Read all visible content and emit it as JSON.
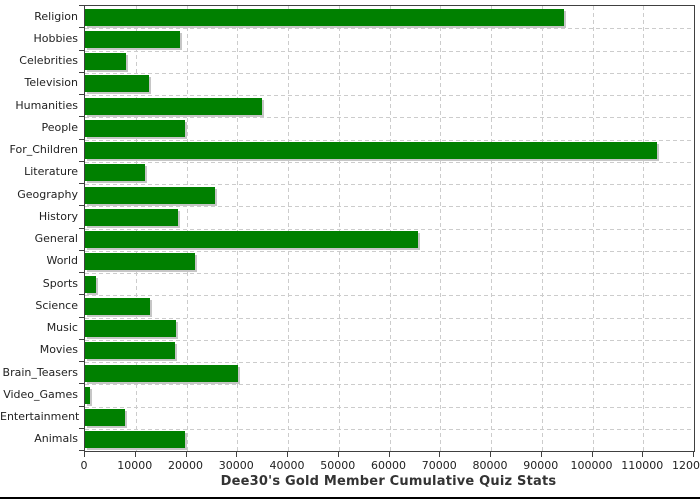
{
  "title": "Dee30's Gold Member Cumulative Quiz Stats",
  "colors": {
    "bar": "#008000",
    "bar_shadow": "#c6c6c6",
    "plot_border": "#404040",
    "gridline": "#cccccc",
    "text": "#222222",
    "title_text": "#333333",
    "background": "#ffffff",
    "bottom_rule": "#000000"
  },
  "chart_data": {
    "type": "bar",
    "orientation": "horizontal",
    "title": "Dee30's Gold Member Cumulative Quiz Stats",
    "categories": [
      "Religion",
      "Hobbies",
      "Celebrities",
      "Television",
      "Humanities",
      "People",
      "For_Children",
      "Literature",
      "Geography",
      "History",
      "General",
      "World",
      "Sports",
      "Science",
      "Music",
      "Movies",
      "Brain_Teasers",
      "Video_Games",
      "Entertainment",
      "Animals"
    ],
    "values": [
      94300,
      18700,
      8000,
      12700,
      34800,
      19800,
      112800,
      11900,
      25700,
      18400,
      65700,
      21600,
      2100,
      12900,
      18000,
      17700,
      30200,
      1000,
      7800,
      19800
    ],
    "xlabel": "",
    "ylabel": "",
    "xlim": [
      0,
      120000
    ],
    "x_ticks": [
      0,
      10000,
      20000,
      30000,
      40000,
      50000,
      60000,
      70000,
      80000,
      90000,
      100000,
      110000,
      120000
    ],
    "grid": "dashed",
    "legend": "none"
  }
}
